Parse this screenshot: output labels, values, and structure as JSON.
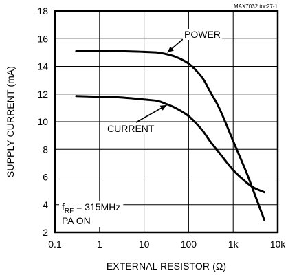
{
  "chart_data": {
    "type": "line",
    "xlabel": "EXTERNAL RESISTOR (Ω)",
    "ylabel": "SUPPLY CURRENT (mA)",
    "x_scale": "log",
    "xlim": [
      0.1,
      10000
    ],
    "ylim": [
      2,
      18
    ],
    "x_ticks": [
      0.1,
      1,
      10,
      100,
      1000,
      10000
    ],
    "x_tick_labels": [
      "0.1",
      "1",
      "10",
      "100",
      "1k",
      "10k"
    ],
    "y_ticks": [
      2,
      4,
      6,
      8,
      10,
      12,
      14,
      16,
      18
    ],
    "y_tick_labels": [
      "2",
      "4",
      "6",
      "8",
      "10",
      "12",
      "14",
      "16",
      "18"
    ],
    "grid": true,
    "figure_id": "MAX7032 toc27-1",
    "condition_prefix": "f",
    "condition_subscript": "RF",
    "condition_value": " = 315MHz",
    "condition_line2": "PA ON",
    "series": [
      {
        "name": "POWER",
        "x": [
          0.3,
          1,
          3,
          10,
          20,
          30,
          50,
          100,
          200,
          300,
          500,
          1000,
          2000,
          3000,
          5000
        ],
        "y": [
          15.1,
          15.1,
          15.1,
          15.05,
          15.0,
          14.9,
          14.7,
          14.2,
          13.2,
          12.2,
          10.9,
          8.6,
          6.3,
          4.8,
          2.9
        ]
      },
      {
        "name": "CURRENT",
        "x": [
          0.3,
          1,
          3,
          10,
          20,
          30,
          50,
          100,
          200,
          300,
          500,
          1000,
          2000,
          3000,
          5000
        ],
        "y": [
          11.85,
          11.8,
          11.75,
          11.6,
          11.5,
          11.3,
          11.0,
          10.4,
          9.4,
          8.6,
          7.7,
          6.5,
          5.6,
          5.2,
          4.9
        ]
      }
    ]
  }
}
